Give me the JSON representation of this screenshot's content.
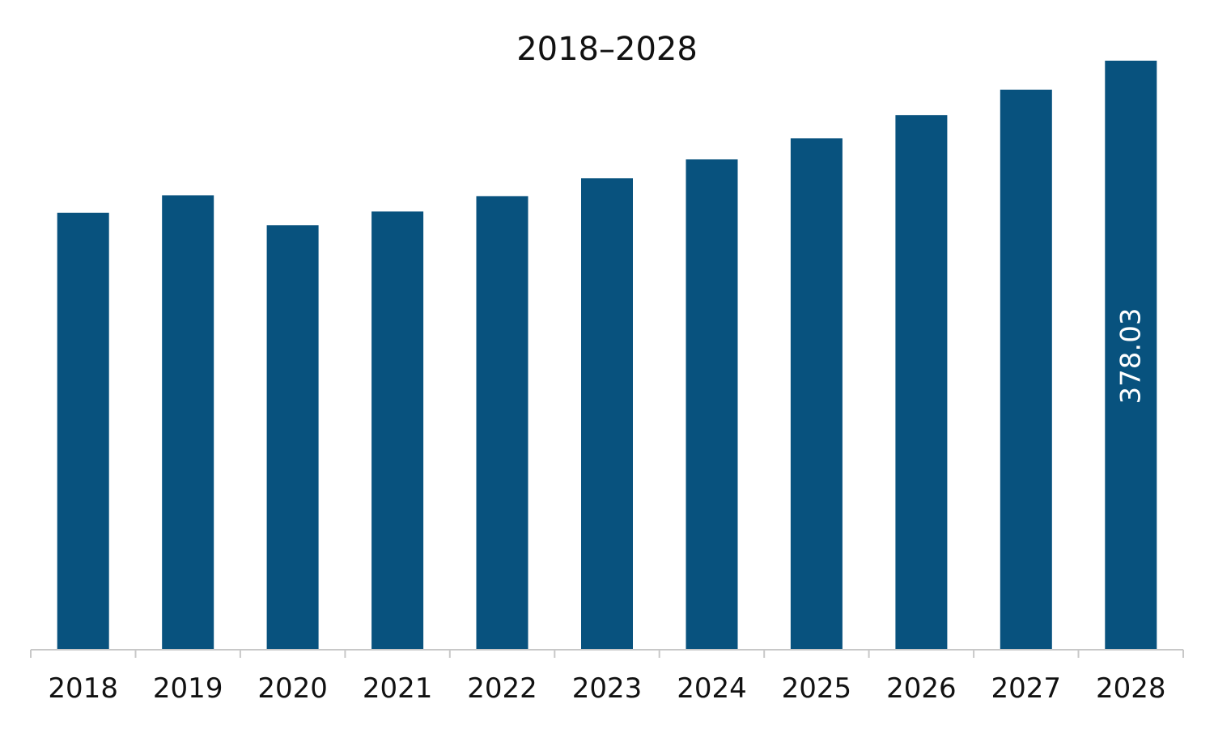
{
  "chart_data": {
    "type": "bar",
    "title": "2018–2028",
    "xlabel": "",
    "ylabel": "",
    "categories": [
      "2018",
      "2019",
      "2020",
      "2021",
      "2022",
      "2023",
      "2024",
      "2025",
      "2026",
      "2027",
      "2028"
    ],
    "series": [
      {
        "values": [
          280.3,
          291.5,
          272.3,
          281.1,
          291.0,
          302.5,
          314.6,
          328.1,
          343.1,
          359.4,
          378.03
        ]
      }
    ],
    "data_labels": [
      {
        "category": "2028",
        "text": "378.03",
        "orientation": "vertical"
      }
    ],
    "ylim": [
      0,
      400
    ],
    "grid": false,
    "legend": "none",
    "colors": {
      "bar": "#08527e",
      "axis": "#c8c8c8",
      "text": "#111111",
      "data_label": "#ffffff"
    }
  }
}
